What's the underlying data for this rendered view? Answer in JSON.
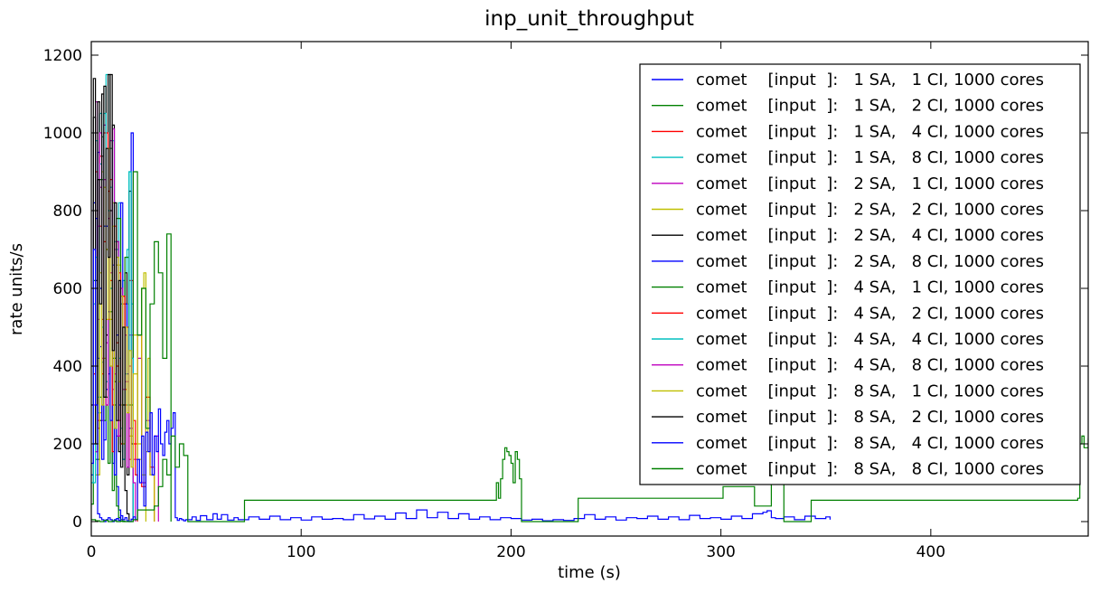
{
  "chart_data": {
    "type": "line",
    "title": "inp_unit_throughput",
    "xlabel": "time (s)",
    "ylabel": "rate units/s",
    "xlim": [
      0,
      475
    ],
    "ylim": [
      0,
      1200
    ],
    "xticks": [
      0,
      100,
      200,
      300,
      400
    ],
    "yticks": [
      0,
      200,
      400,
      600,
      800,
      1000,
      1200
    ],
    "grid": false,
    "legend_position": "top-right",
    "series": [
      {
        "name": "comet    [input  ]:   1 SA,   1 CI, 1000 cores",
        "color": "#0000ff",
        "step": true,
        "x": [
          0,
          1,
          2,
          3,
          4,
          5,
          6,
          7,
          8,
          9,
          10,
          11,
          12,
          13,
          14
        ],
        "y": [
          120,
          820,
          300,
          950,
          450,
          880,
          210,
          760,
          380,
          600,
          150,
          420,
          90,
          30,
          0
        ]
      },
      {
        "name": "comet    [input  ]:   1 SA,   2 CI, 1000 cores",
        "color": "#008000",
        "step": true,
        "x": [
          0,
          1,
          2,
          3,
          4,
          5,
          6,
          7,
          8,
          9,
          10,
          11,
          12,
          13,
          14,
          15,
          16
        ],
        "y": [
          45,
          620,
          180,
          880,
          320,
          990,
          260,
          700,
          150,
          540,
          80,
          300,
          40,
          10,
          5,
          0,
          0
        ]
      },
      {
        "name": "comet    [input  ]:   1 SA,   4 CI, 1000 cores",
        "color": "#ff0000",
        "step": true,
        "x": [
          1,
          2,
          3,
          4,
          5,
          6,
          7,
          8,
          9,
          10,
          11,
          12,
          13,
          14,
          16,
          18,
          20,
          22,
          24,
          26,
          28,
          30
        ],
        "y": [
          380,
          900,
          240,
          760,
          520,
          1000,
          300,
          850,
          620,
          180,
          720,
          400,
          260,
          560,
          300,
          620,
          200,
          480,
          90,
          320,
          140,
          0
        ]
      },
      {
        "name": "comet    [input  ]:   1 SA,   8 CI, 1000 cores",
        "color": "#00bfbf",
        "step": true,
        "x": [
          0,
          1,
          2,
          3,
          4,
          5,
          6,
          7,
          8,
          9,
          10,
          11,
          12,
          13,
          14,
          15,
          16,
          17,
          18,
          19,
          20
        ],
        "y": [
          100,
          560,
          980,
          320,
          1050,
          410,
          760,
          1150,
          540,
          860,
          300,
          720,
          460,
          820,
          240,
          620,
          380,
          700,
          900,
          560,
          0
        ]
      },
      {
        "name": "comet    [input  ]:   2 SA,   1 CI, 1000 cores",
        "color": "#bf00bf",
        "step": true,
        "x": [
          1,
          2,
          3,
          4,
          5,
          6,
          7,
          8,
          9,
          10,
          11,
          12,
          14,
          16,
          18,
          20,
          22,
          24,
          26,
          28,
          30,
          32
        ],
        "y": [
          300,
          1080,
          520,
          860,
          260,
          1020,
          460,
          780,
          980,
          340,
          700,
          220,
          580,
          360,
          480,
          160,
          420,
          100,
          260,
          120,
          220,
          0
        ]
      },
      {
        "name": "comet    [input  ]:   2 SA,   2 CI, 1000 cores",
        "color": "#bfbf00",
        "step": true,
        "x": [
          2,
          3,
          4,
          5,
          6,
          7,
          8,
          9,
          10,
          11,
          12,
          14,
          16,
          18,
          20,
          22,
          24,
          25,
          26,
          27,
          28,
          30
        ],
        "y": [
          120,
          560,
          280,
          900,
          420,
          700,
          960,
          520,
          820,
          380,
          660,
          300,
          560,
          220,
          480,
          160,
          600,
          640,
          180,
          420,
          120,
          0
        ]
      },
      {
        "name": "comet    [input  ]:   2 SA,   4 CI, 1000 cores",
        "color": "#000000",
        "step": true,
        "x": [
          0,
          1,
          2,
          3,
          4,
          5,
          6,
          7,
          8,
          9,
          10,
          11,
          12,
          13,
          14,
          15,
          16,
          17,
          18,
          19,
          20
        ],
        "y": [
          300,
          1140,
          620,
          1080,
          260,
          940,
          1120,
          480,
          1150,
          800,
          1020,
          360,
          720,
          180,
          560,
          300,
          640,
          120,
          850,
          200,
          0
        ]
      },
      {
        "name": "comet    [input  ]:   2 SA,   8 CI, 1000 cores",
        "color": "#0000ff",
        "step": true,
        "x": [
          1,
          2,
          3,
          4,
          5,
          6,
          7,
          8,
          9,
          10,
          11,
          12,
          13,
          14,
          15,
          16,
          17,
          18,
          19,
          20
        ],
        "y": [
          200,
          780,
          420,
          600,
          160,
          760,
          340,
          540,
          260,
          660,
          120,
          480,
          300,
          820,
          160,
          560,
          380,
          240,
          1000,
          0
        ]
      },
      {
        "name": "comet    [input  ]:   4 SA,   1 CI, 1000 cores",
        "color": "#008000",
        "step": true,
        "x": [
          2,
          4,
          6,
          8,
          10,
          12,
          14,
          16,
          18,
          20,
          22,
          24,
          26,
          28,
          30,
          32,
          34,
          36,
          38
        ],
        "y": [
          160,
          880,
          320,
          960,
          420,
          780,
          200,
          680,
          300,
          900,
          480,
          600,
          240,
          560,
          720,
          640,
          420,
          740,
          0
        ]
      },
      {
        "name": "comet    [input  ]:   4 SA,   2 CI, 1000 cores",
        "color": "#ff0000",
        "step": true,
        "x": [
          3,
          4,
          5,
          6,
          7,
          8,
          9,
          10,
          11,
          12,
          13,
          14,
          15,
          16,
          17,
          18,
          19,
          20,
          21,
          22
        ],
        "y": [
          260,
          940,
          380,
          720,
          1000,
          520,
          880,
          300,
          760,
          460,
          640,
          200,
          580,
          340,
          500,
          160,
          420,
          260,
          120,
          0
        ]
      },
      {
        "name": "comet    [input  ]:   4 SA,   4 CI, 1000 cores",
        "color": "#00bfbf",
        "step": true,
        "x": [
          1,
          2,
          3,
          4,
          5,
          6,
          7,
          8,
          9,
          10,
          11,
          12,
          13,
          14,
          15,
          16,
          17,
          18,
          19,
          20
        ],
        "y": [
          100,
          680,
          280,
          920,
          500,
          1050,
          360,
          800,
          600,
          980,
          240,
          700,
          420,
          560,
          160,
          480,
          300,
          900,
          420,
          0
        ]
      },
      {
        "name": "comet    [input  ]:   4 SA,   8 CI, 1000 cores",
        "color": "#bf00bf",
        "step": true,
        "x": [
          2,
          3,
          4,
          5,
          6,
          7,
          8,
          9,
          10,
          11,
          12,
          13,
          14,
          15,
          16,
          17,
          18,
          19,
          20,
          21
        ],
        "y": [
          180,
          760,
          1000,
          420,
          880,
          300,
          960,
          640,
          1010,
          380,
          720,
          220,
          600,
          340,
          480,
          140,
          400,
          240,
          100,
          0
        ]
      },
      {
        "name": "comet    [input  ]:   8 SA,   1 CI, 1000 cores",
        "color": "#bfbf00",
        "step": true,
        "x": [
          3,
          4,
          5,
          6,
          7,
          8,
          9,
          10,
          11,
          12,
          13,
          14,
          15,
          16,
          17,
          18,
          19,
          20,
          22,
          24,
          26
        ],
        "y": [
          120,
          640,
          300,
          860,
          520,
          960,
          400,
          760,
          240,
          680,
          360,
          580,
          200,
          500,
          280,
          440,
          140,
          380,
          200,
          120,
          0
        ]
      },
      {
        "name": "comet    [input  ]:   8 SA,   2 CI, 1000 cores",
        "color": "#000000",
        "step": true,
        "x": [
          0,
          1,
          2,
          3,
          4,
          5,
          6,
          7,
          8,
          9,
          10,
          11,
          12,
          13,
          14,
          15,
          16,
          17,
          18
        ],
        "y": [
          400,
          1040,
          200,
          880,
          560,
          1100,
          320,
          960,
          680,
          1150,
          440,
          820,
          260,
          620,
          140,
          500,
          80,
          20,
          0
        ]
      },
      {
        "name": "comet    [input  ]:   8 SA,   4 CI, 1000 cores",
        "color": "#0000ff",
        "step": true,
        "x": [
          0,
          1,
          2,
          3,
          4,
          5,
          6,
          7,
          8,
          9,
          10,
          11,
          12,
          13,
          14,
          15,
          16,
          17,
          18,
          19,
          20,
          21,
          22,
          23,
          24,
          25,
          26,
          27,
          28,
          29,
          30,
          31,
          32,
          33,
          34,
          35,
          36,
          37,
          38,
          39,
          40,
          41,
          42,
          43,
          44,
          45,
          48,
          50,
          52,
          55,
          58,
          60,
          62,
          65,
          68,
          70,
          75,
          80,
          85,
          90,
          95,
          100,
          105,
          110,
          115,
          120,
          125,
          130,
          135,
          140,
          145,
          150,
          155,
          160,
          165,
          170,
          175,
          180,
          185,
          190,
          195,
          200,
          205,
          210,
          215,
          220,
          225,
          230,
          235,
          240,
          245,
          250,
          255,
          260,
          265,
          270,
          275,
          280,
          285,
          290,
          295,
          300,
          305,
          310,
          315,
          320,
          322,
          324,
          326,
          330,
          335,
          340,
          345,
          350,
          352
        ],
        "y": [
          150,
          700,
          300,
          20,
          10,
          5,
          0,
          5,
          10,
          5,
          0,
          5,
          8,
          3,
          15,
          5,
          10,
          2,
          0,
          6,
          12,
          5,
          160,
          100,
          220,
          40,
          230,
          180,
          280,
          120,
          220,
          180,
          290,
          200,
          170,
          230,
          260,
          200,
          240,
          280,
          10,
          3,
          8,
          5,
          2,
          5,
          12,
          3,
          15,
          5,
          20,
          6,
          18,
          4,
          10,
          5,
          12,
          6,
          14,
          5,
          10,
          4,
          12,
          6,
          8,
          5,
          18,
          7,
          14,
          6,
          22,
          8,
          30,
          10,
          24,
          8,
          20,
          6,
          12,
          5,
          10,
          8,
          4,
          6,
          2,
          5,
          3,
          8,
          18,
          6,
          12,
          4,
          10,
          8,
          14,
          6,
          12,
          5,
          16,
          8,
          10,
          6,
          14,
          8,
          20,
          24,
          28,
          10,
          8,
          12,
          5,
          14,
          8,
          12,
          5
        ]
      },
      {
        "name": "comet    [input  ]:   8 SA,   8 CI, 1000 cores",
        "color": "#008000",
        "step": true,
        "x": [
          0,
          2,
          4,
          6,
          8,
          10,
          12,
          14,
          16,
          18,
          20,
          22,
          24,
          26,
          28,
          30,
          32,
          34,
          36,
          38,
          40,
          42,
          44,
          46,
          73,
          192,
          193,
          194,
          195,
          196,
          197,
          198,
          199,
          200,
          201,
          202,
          203,
          204,
          205,
          232,
          300,
          301,
          315,
          316,
          323,
          324,
          330,
          343,
          344,
          470,
          471,
          472,
          473,
          475
        ],
        "y": [
          5,
          2,
          0,
          3,
          0,
          2,
          0,
          1,
          0,
          0,
          5,
          30,
          30,
          30,
          30,
          40,
          90,
          160,
          120,
          220,
          140,
          200,
          170,
          0,
          55,
          55,
          100,
          60,
          110,
          160,
          190,
          180,
          170,
          150,
          100,
          180,
          160,
          110,
          0,
          60,
          60,
          90,
          90,
          40,
          40,
          130,
          0,
          55,
          55,
          60,
          200,
          220,
          190,
          215
        ]
      }
    ]
  }
}
